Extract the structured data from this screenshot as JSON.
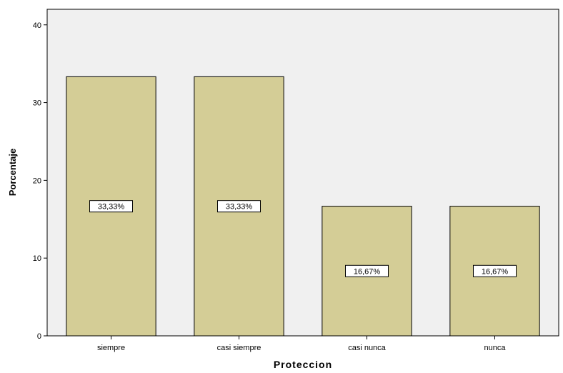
{
  "chart_data": {
    "type": "bar",
    "categories": [
      "siempre",
      "casi siempre",
      "casi nunca",
      "nunca"
    ],
    "values": [
      33.33,
      33.33,
      16.67,
      16.67
    ],
    "data_labels": [
      "33,33%",
      "33,33%",
      "16,67%",
      "16,67%"
    ],
    "title": "",
    "xlabel": "Proteccion",
    "ylabel": "Porcentaje",
    "ylim": [
      0,
      42
    ],
    "yticks": [
      0,
      10,
      20,
      30,
      40
    ],
    "grid": false,
    "legend": "none",
    "colors": {
      "bar_fill": "#d4cd96",
      "bar_stroke": "#000000",
      "plot_background": "#f0f0f0",
      "label_box": "#ffffff"
    }
  }
}
